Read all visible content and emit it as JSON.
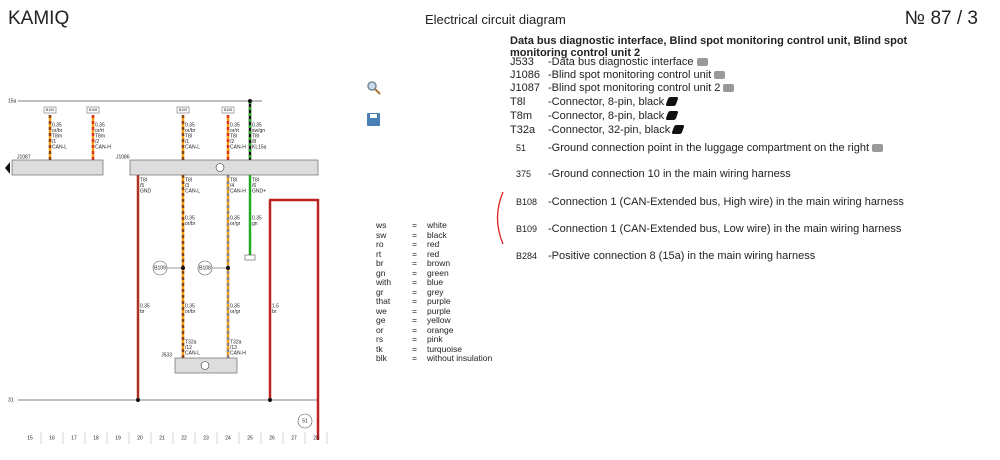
{
  "header": {
    "brand": "KAMIQ",
    "title": "Electrical circuit diagram",
    "number": "№ 87 / 3"
  },
  "heading": "Data bus diagnostic interface, Blind spot monitoring control unit, Blind spot monitoring control unit 2",
  "components": [
    {
      "code": "J533",
      "description": "-Data bus diagnostic interface"
    },
    {
      "code": "J1086",
      "description": "-Blind spot monitoring control unit"
    },
    {
      "code": "J1087",
      "description": "-Blind spot monitoring control unit 2"
    },
    {
      "code": "T8l",
      "description": "-Connector, 8-pin, black"
    },
    {
      "code": "T8m",
      "description": "-Connector, 8-pin, black"
    },
    {
      "code": "T32a",
      "description": "-Connector, 32-pin, black"
    },
    {
      "code": "51",
      "description": "-Ground connection point in the luggage compartment on the right"
    },
    {
      "code": "375",
      "description": "-Ground connection 10 in the main wiring harness"
    },
    {
      "code": "B108",
      "description": "-Connection 1 (CAN-Extended bus, High wire) in the main wiring harness"
    },
    {
      "code": "B109",
      "description": "-Connection 1 (CAN-Extended bus, Low wire) in the main wiring harness"
    },
    {
      "code": "B284",
      "description": "-Positive connection 8 (15a) in the main wiring harness"
    }
  ],
  "equals": "=",
  "color_codes": [
    {
      "code": "ws",
      "name": "white"
    },
    {
      "code": "sw",
      "name": "black"
    },
    {
      "code": "ro",
      "name": "red"
    },
    {
      "code": "rt",
      "name": "red"
    },
    {
      "code": "br",
      "name": "brown"
    },
    {
      "code": "gn",
      "name": "green"
    },
    {
      "code": "with",
      "name": "blue"
    },
    {
      "code": "gr",
      "name": "grey"
    },
    {
      "code": "that",
      "name": "purple"
    },
    {
      "code": "we",
      "name": "purple"
    },
    {
      "code": "ge",
      "name": "yellow"
    },
    {
      "code": "or",
      "name": "orange"
    },
    {
      "code": "rs",
      "name": "pink"
    },
    {
      "code": "tk",
      "name": "turquoise"
    },
    {
      "code": "blk",
      "name": "without insulation"
    }
  ],
  "diagram": {
    "rail_top": "15a",
    "rail_bottom": "31",
    "unit_j1087": "J1087",
    "unit_j1086": "J1086",
    "unit_j533": "J533",
    "junction_b109": "B109",
    "junction_b108": "B108",
    "ground_51": "51",
    "top_boxes": [
      "B109",
      "B108",
      "B109",
      "B108"
    ],
    "labels": [
      "0.35",
      "or/br",
      "T8m",
      "/1",
      "CAN-L",
      "0.35",
      "or/rt",
      "T8m",
      "/2",
      "CAN-H",
      "0.35",
      "or/br",
      "T8l",
      "/1",
      "CAN-L",
      "0.35",
      "or/rt",
      "T8l",
      "/2",
      "CAN-H",
      "0.35",
      "sw/gn",
      "T8l",
      "/8",
      "KL15a",
      "T8l",
      "/5",
      "GND",
      "T8l",
      "/3",
      "CAN-L",
      "T8l",
      "/4",
      "CAN-H",
      "T8l",
      "/6",
      "GND+",
      "0.35",
      "or/br",
      "0.35",
      "or/gr",
      "0.35",
      "gn",
      "0.35",
      "br",
      "0.35",
      "or/br",
      "0.35",
      "or/gr",
      "1.5",
      "br",
      "T32a",
      "/12",
      "CAN-L",
      "T32a",
      "/13",
      "CAN-H"
    ],
    "column_numbers": [
      15,
      16,
      17,
      18,
      19,
      20,
      21,
      22,
      23,
      24,
      25,
      26,
      27,
      28
    ]
  }
}
